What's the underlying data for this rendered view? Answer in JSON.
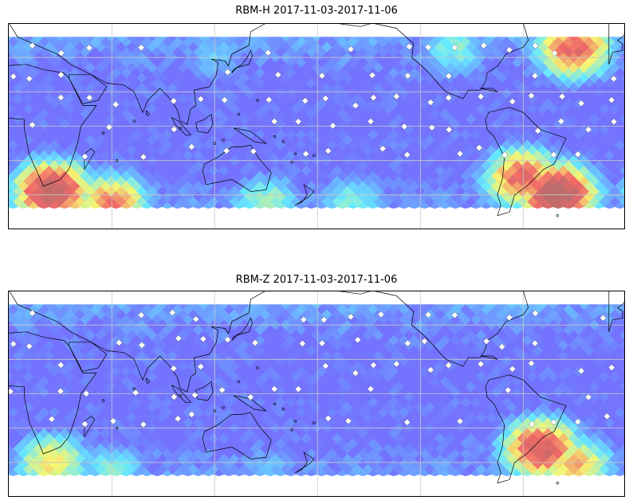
{
  "panels": [
    {
      "title": "RBM-H 2017-11-03-2017-11-06",
      "hotspots": [
        {
          "lon": 25,
          "lat": -38,
          "level": 0.95
        },
        {
          "lon": 60,
          "lat": -45,
          "level": 0.8
        },
        {
          "lon": 150,
          "lat": -45,
          "level": 0.6
        },
        {
          "lon": 200,
          "lat": -45,
          "level": 0.55
        },
        {
          "lon": 320,
          "lat": -40,
          "level": 1.0
        },
        {
          "lon": 300,
          "lat": -30,
          "level": 0.85
        },
        {
          "lon": 330,
          "lat": 45,
          "level": 0.85
        },
        {
          "lon": 260,
          "lat": 45,
          "level": 0.55
        },
        {
          "lon": 120,
          "lat": 40,
          "level": 0.45
        }
      ]
    },
    {
      "title": "RBM-Z 2017-11-03-2017-11-06",
      "hotspots": [
        {
          "lon": 25,
          "lat": -40,
          "level": 0.7
        },
        {
          "lon": 60,
          "lat": -45,
          "level": 0.55
        },
        {
          "lon": 150,
          "lat": -45,
          "level": 0.45
        },
        {
          "lon": 310,
          "lat": -32,
          "level": 0.9
        },
        {
          "lon": 330,
          "lat": -42,
          "level": 0.75
        },
        {
          "lon": 290,
          "lat": 45,
          "level": 0.4
        }
      ]
    }
  ],
  "map": {
    "lon_range": [
      -0.6,
      359.4
    ],
    "lat_range": [
      -60,
      60
    ],
    "data_lat_range": [
      -48,
      52
    ],
    "gridline_lons": [
      60,
      120,
      180,
      240,
      300
    ],
    "gridline_lats": [
      -40,
      -20,
      0,
      20,
      40
    ]
  },
  "colors": {
    "low": "#6b6bff",
    "cyan": "#5ee8ff",
    "yellow": "#f5f56a",
    "red": "#f06060",
    "dark_red": "#b86464",
    "grid": "#c8c8c8",
    "coast": "#000000"
  }
}
